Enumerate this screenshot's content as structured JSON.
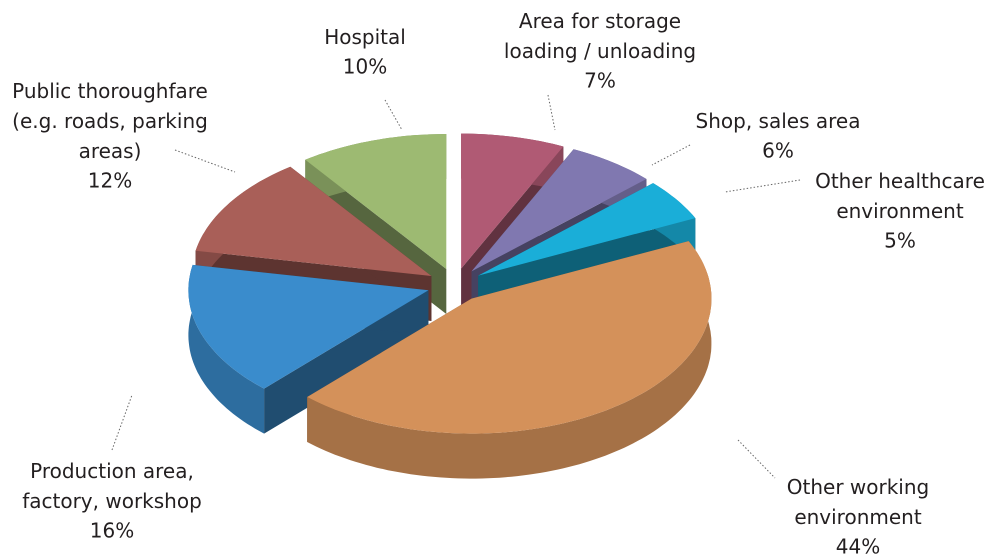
{
  "chart_data": {
    "type": "pie",
    "categories": [
      "Area for storage\nloading / unloading",
      "Shop, sales area",
      "Other healthcare\nenvironment",
      "Other working\nenvironment",
      "Production area,\nfactory, workshop",
      "Public thoroughfare\n(e.g. roads, parking\nareas)",
      "Hospital"
    ],
    "values": [
      7,
      6,
      5,
      44,
      16,
      12,
      10
    ],
    "value_labels": [
      "7%",
      "6%",
      "5%",
      "44%",
      "16%",
      "12%",
      "10%"
    ],
    "colors": [
      "#b05a74",
      "#8078b0",
      "#1aaed8",
      "#d4915a",
      "#3a8ccc",
      "#a95f58",
      "#9dba72"
    ]
  }
}
